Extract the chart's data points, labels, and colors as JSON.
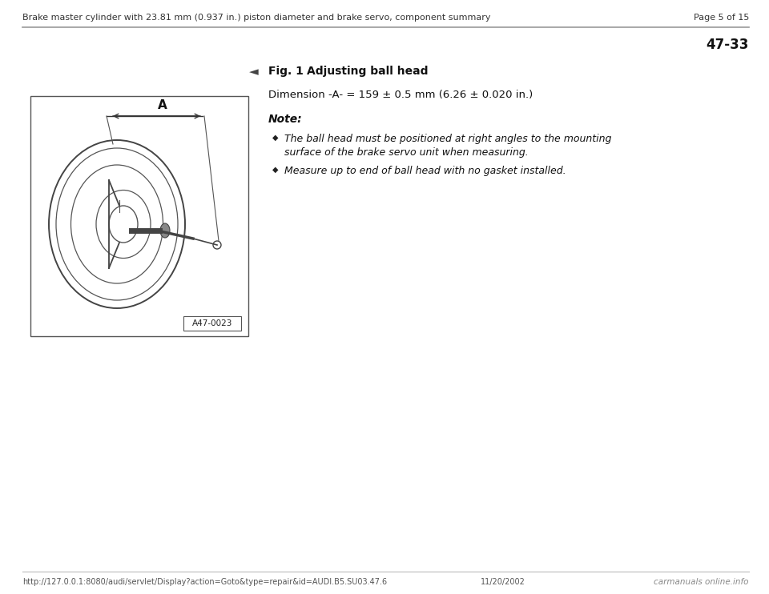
{
  "bg_color": "#ffffff",
  "header_text": "Brake master cylinder with 23.81 mm (0.937 in.) piston diameter and brake servo, component summary",
  "page_text": "Page 5 of 15",
  "page_num": "47-33",
  "fig_title": "Fig. 1",
  "fig_subtitle": "Adjusting ball head",
  "dimension_text": "Dimension -A- = 159 ± 0.5 mm (6.26 ± 0.020 in.)",
  "note_label": "Note:",
  "bullet1_line1": "The ball head must be positioned at right angles to the mounting",
  "bullet1_line2": "surface of the brake servo unit when measuring.",
  "bullet2": "Measure up to end of ball head with no gasket installed.",
  "image_label": "A47-0023",
  "footer_url": "http://127.0.0.1:8080/audi/servlet/Display?action=Goto&type=repair&id=AUDI.B5.SU03.47.6",
  "footer_date": "11/20/2002",
  "footer_logo": "carmanuals online.info",
  "header_fontsize": 8.0,
  "page_fontsize": 8.0,
  "pagenum_fontsize": 12,
  "fig_title_fontsize": 10,
  "dim_fontsize": 9.5,
  "note_fontsize": 10,
  "bullet_fontsize": 9.0,
  "footer_fontsize": 7.0
}
